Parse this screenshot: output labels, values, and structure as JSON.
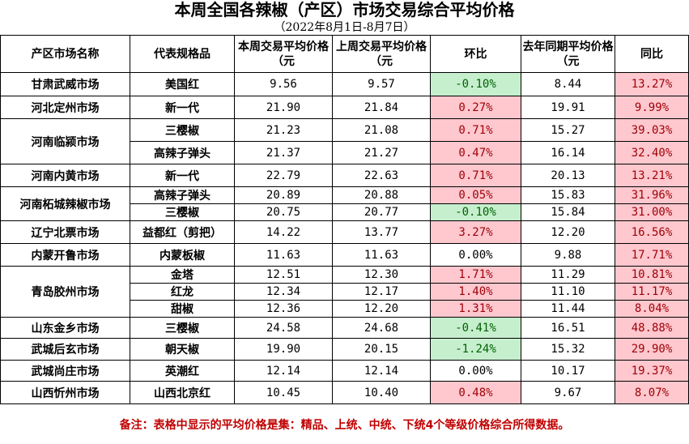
{
  "title": "本周全国各辣椒（产区）市场交易综合平均价格",
  "subtitle": "（2022年8月1日-8月7日）",
  "headers": [
    "产区市场名称",
    "代表规格品",
    "本周交易平均价格（元",
    "上周交易平均价格（元",
    "环比",
    "去年同期平均价格（元",
    "同比"
  ],
  "markets": [
    {
      "name": "甘肃武威市场",
      "rows": [
        {
          "variety": "美国红",
          "this_week": "9.56",
          "last_week": "9.57",
          "wow": "-0.10%",
          "last_year": "8.44",
          "yoy": "13.27%"
        }
      ]
    },
    {
      "name": "河北定州市场",
      "rows": [
        {
          "variety": "新一代",
          "this_week": "21.90",
          "last_week": "21.84",
          "wow": "0.27%",
          "last_year": "19.91",
          "yoy": "9.99%"
        }
      ]
    },
    {
      "name": "河南临颍市场",
      "rows": [
        {
          "variety": "三樱椒",
          "this_week": "21.23",
          "last_week": "21.08",
          "wow": "0.71%",
          "last_year": "15.27",
          "yoy": "39.03%"
        },
        {
          "variety": "高辣子弹头",
          "this_week": "21.37",
          "last_week": "21.27",
          "wow": "0.47%",
          "last_year": "16.14",
          "yoy": "32.40%"
        }
      ]
    },
    {
      "name": "河南内黄市场",
      "rows": [
        {
          "variety": "新一代",
          "this_week": "22.79",
          "last_week": "22.63",
          "wow": "0.71%",
          "last_year": "20.13",
          "yoy": "13.21%"
        }
      ]
    },
    {
      "name": "河南柘城辣椒市场",
      "rows": [
        {
          "variety": "高辣子弹头",
          "this_week": "20.89",
          "last_week": "20.88",
          "wow": "0.05%",
          "last_year": "15.83",
          "yoy": "31.96%"
        },
        {
          "variety": "三樱椒",
          "this_week": "20.75",
          "last_week": "20.77",
          "wow": "-0.10%",
          "last_year": "15.84",
          "yoy": "31.00%"
        }
      ]
    },
    {
      "name": "辽宁北票市场",
      "rows": [
        {
          "variety": "益都红（剪把）",
          "this_week": "14.22",
          "last_week": "13.77",
          "wow": "3.27%",
          "last_year": "12.20",
          "yoy": "16.56%"
        }
      ]
    },
    {
      "name": "内蒙开鲁市场",
      "rows": [
        {
          "variety": "内蒙板椒",
          "this_week": "11.63",
          "last_week": "11.63",
          "wow": "0.00%",
          "last_year": "9.88",
          "yoy": "17.71%"
        }
      ]
    },
    {
      "name": "青岛胶州市场",
      "rows": [
        {
          "variety": "金塔",
          "this_week": "12.51",
          "last_week": "12.30",
          "wow": "1.71%",
          "last_year": "11.29",
          "yoy": "10.81%"
        },
        {
          "variety": "红龙",
          "this_week": "12.34",
          "last_week": "12.17",
          "wow": "1.40%",
          "last_year": "11.10",
          "yoy": "11.17%"
        },
        {
          "variety": "甜椒",
          "this_week": "12.36",
          "last_week": "12.20",
          "wow": "1.31%",
          "last_year": "11.44",
          "yoy": "8.04%"
        }
      ]
    },
    {
      "name": "山东金乡市场",
      "rows": [
        {
          "variety": "三樱椒",
          "this_week": "24.58",
          "last_week": "24.68",
          "wow": "-0.41%",
          "last_year": "16.51",
          "yoy": "48.88%"
        }
      ]
    },
    {
      "name": "武城后玄市场",
      "rows": [
        {
          "variety": "朝天椒",
          "this_week": "19.90",
          "last_week": "20.15",
          "wow": "-1.24%",
          "last_year": "15.32",
          "yoy": "29.90%"
        }
      ]
    },
    {
      "name": "武城尚庄市场",
      "rows": [
        {
          "variety": "英潮红",
          "this_week": "12.14",
          "last_week": "12.14",
          "wow": "0.00%",
          "last_year": "10.17",
          "yoy": "19.37%"
        }
      ]
    },
    {
      "name": "山西忻州市场",
      "rows": [
        {
          "variety": "山西北京红",
          "this_week": "10.45",
          "last_week": "10.40",
          "wow": "0.48%",
          "last_year": "9.67",
          "yoy": "8.07%"
        }
      ]
    }
  ],
  "colors": {
    "up_fill": "#ffc7ce",
    "up_text": "#9c0006",
    "down_fill": "#c6efce",
    "down_text": "#006100",
    "note": "#c00000"
  },
  "note": "备注：表格中显示的平均价格是集：精品、上统、中统、下统4个等级价格综合所得数据。"
}
